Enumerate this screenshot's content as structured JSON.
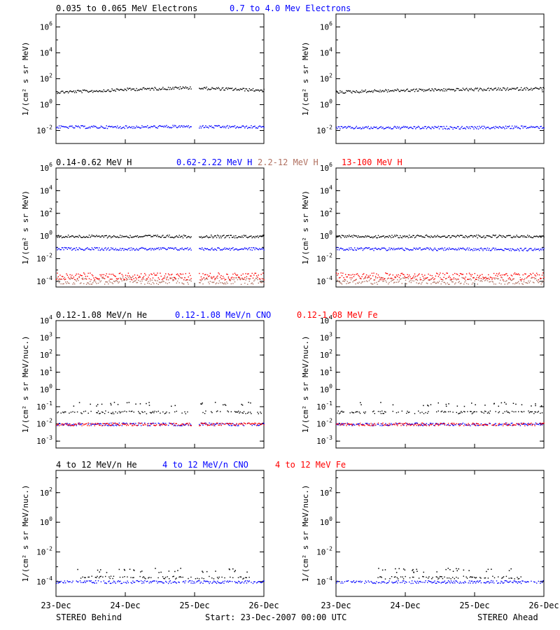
{
  "colors": {
    "black": "#000000",
    "blue": "#0000ff",
    "tan": "#b07060",
    "red": "#ff0000"
  },
  "footer": {
    "left": "STEREO Behind",
    "center": "Start: 23-Dec-2007 00:00 UTC",
    "right": "STEREO Ahead"
  },
  "x_ticks": [
    "23-Dec",
    "24-Dec",
    "25-Dec",
    "26-Dec"
  ],
  "chart_data": [
    {
      "type": "scatter",
      "row": 0,
      "ylabel": "1/(cm² s sr MeV)",
      "yscale": "log",
      "ylim_exp": [
        -3,
        7
      ],
      "ytick_exps": [
        -2,
        0,
        2,
        4,
        6
      ],
      "titles": [
        {
          "text": "0.035 to 0.065 MeV Electrons",
          "color": "#000000"
        },
        {
          "text": "0.7 to 4.0 Mev Electrons",
          "color": "#0000ff"
        }
      ],
      "series": [
        {
          "name": "0.035 to 0.065 MeV Electrons",
          "color": "#000000",
          "behind": [
            [
              0,
              10
            ],
            [
              0.5,
              12
            ],
            [
              1,
              16
            ],
            [
              1.5,
              19
            ],
            [
              1.95,
              22
            ],
            [
              2.05,
              20
            ],
            [
              2.5,
              17
            ],
            [
              3,
              14
            ]
          ],
          "ahead": [
            [
              0,
              10
            ],
            [
              0.5,
              12
            ],
            [
              1,
              14
            ],
            [
              1.5,
              15
            ],
            [
              2,
              16
            ],
            [
              2.5,
              17
            ],
            [
              3,
              19
            ]
          ]
        },
        {
          "name": "0.7 to 4.0 Mev Electrons",
          "color": "#0000ff",
          "behind": [
            [
              0,
              0.02
            ],
            [
              1,
              0.02
            ],
            [
              1.95,
              0.022
            ],
            [
              2.05,
              0.021
            ],
            [
              3,
              0.02
            ]
          ],
          "ahead": [
            [
              0,
              0.018
            ],
            [
              1,
              0.018
            ],
            [
              2,
              0.018
            ],
            [
              3,
              0.02
            ]
          ]
        }
      ]
    },
    {
      "type": "scatter",
      "row": 1,
      "ylabel": "1/(cm² s sr MeV)",
      "yscale": "log",
      "ylim_exp": [
        -4.5,
        6
      ],
      "ytick_exps": [
        -4,
        -2,
        0,
        2,
        4,
        6
      ],
      "titles": [
        {
          "text": "0.14-0.62 MeV H",
          "color": "#000000"
        },
        {
          "text": "0.62-2.22 MeV H",
          "color": "#0000ff"
        },
        {
          "text": "2.2-12 MeV H",
          "color": "#b07060"
        },
        {
          "text": "13-100 MeV H",
          "color": "#ff0000"
        }
      ],
      "series": [
        {
          "name": "0.14-0.62 MeV H",
          "color": "#000000",
          "behind": [
            [
              0,
              1
            ],
            [
              3,
              1
            ]
          ],
          "ahead": [
            [
              0,
              1
            ],
            [
              3,
              1
            ]
          ]
        },
        {
          "name": "0.62-2.22 MeV H",
          "color": "#0000ff",
          "behind": [
            [
              0,
              0.08
            ],
            [
              3,
              0.08
            ]
          ],
          "ahead": [
            [
              0,
              0.08
            ],
            [
              3,
              0.07
            ]
          ]
        },
        {
          "name": "2.2-12 MeV H",
          "color": "#b07060",
          "behind": [
            [
              0,
              0.00012
            ],
            [
              3,
              0.00012
            ]
          ],
          "ahead": [
            [
              0,
              0.00012
            ],
            [
              3,
              0.00012
            ]
          ]
        },
        {
          "name": "13-100 MeV H",
          "color": "#ff0000",
          "behind": [
            [
              0,
              0.0003
            ],
            [
              3,
              0.0003
            ]
          ],
          "ahead": [
            [
              0,
              0.0003
            ],
            [
              3,
              0.0003
            ]
          ]
        }
      ]
    },
    {
      "type": "scatter",
      "row": 2,
      "ylabel": "1/(cm² s sr MeV/nuc.)",
      "yscale": "log",
      "ylim_exp": [
        -3.4,
        4
      ],
      "ytick_exps": [
        -3,
        -2,
        -1,
        0,
        1,
        2,
        3,
        4
      ],
      "titles": [
        {
          "text": "0.12-1.08 MeV/n He",
          "color": "#000000"
        },
        {
          "text": "0.12-1.08 MeV/n CNO",
          "color": "#0000ff"
        },
        {
          "text": "0.12-1.08 MeV Fe",
          "color": "#ff0000"
        }
      ],
      "series": [
        {
          "name": "0.12-1.08 MeV/n He",
          "color": "#000000",
          "behind": [
            [
              0,
              0.05
            ],
            [
              3,
              0.05
            ]
          ],
          "ahead": [
            [
              0,
              0.05
            ],
            [
              3,
              0.05
            ]
          ]
        },
        {
          "name": "0.12-1.08 MeV/n CNO",
          "color": "#0000ff",
          "behind": [
            [
              0,
              0.01
            ],
            [
              3,
              0.01
            ]
          ],
          "ahead": [
            [
              0,
              0.01
            ],
            [
              3,
              0.01
            ]
          ]
        },
        {
          "name": "0.12-1.08 MeV Fe",
          "color": "#ff0000",
          "behind": [
            [
              0,
              0.01
            ],
            [
              3,
              0.01
            ]
          ],
          "ahead": [
            [
              0,
              0.01
            ],
            [
              3,
              0.01
            ]
          ]
        }
      ]
    },
    {
      "type": "scatter",
      "row": 3,
      "ylabel": "1/(cm² s sr MeV/nuc.)",
      "yscale": "log",
      "ylim_exp": [
        -5,
        3.5
      ],
      "ytick_exps": [
        -4,
        -2,
        0,
        2
      ],
      "titles": [
        {
          "text": "4 to 12 MeV/n He",
          "color": "#000000"
        },
        {
          "text": "4 to 12 MeV/n CNO",
          "color": "#0000ff"
        },
        {
          "text": "4 to 12 MeV Fe",
          "color": "#ff0000"
        }
      ],
      "series": [
        {
          "name": "4 to 12 MeV/n He",
          "color": "#000000",
          "behind": [
            [
              0.3,
              0.0002
            ],
            [
              0.9,
              0.0002
            ],
            [
              1.5,
              0.0002
            ],
            [
              2.8,
              0.0002
            ]
          ],
          "ahead": [
            [
              0.6,
              0.0002
            ],
            [
              2.2,
              0.0002
            ],
            [
              2.7,
              0.0002
            ]
          ]
        },
        {
          "name": "4 to 12 MeV/n CNO",
          "color": "#0000ff",
          "behind": [
            [
              0,
              0.0001
            ],
            [
              3,
              0.0001
            ]
          ],
          "ahead": [
            [
              0,
              0.0001
            ],
            [
              3,
              0.0001
            ]
          ]
        },
        {
          "name": "4 to 12 MeV Fe",
          "color": "#ff0000",
          "behind": [],
          "ahead": []
        }
      ]
    }
  ]
}
